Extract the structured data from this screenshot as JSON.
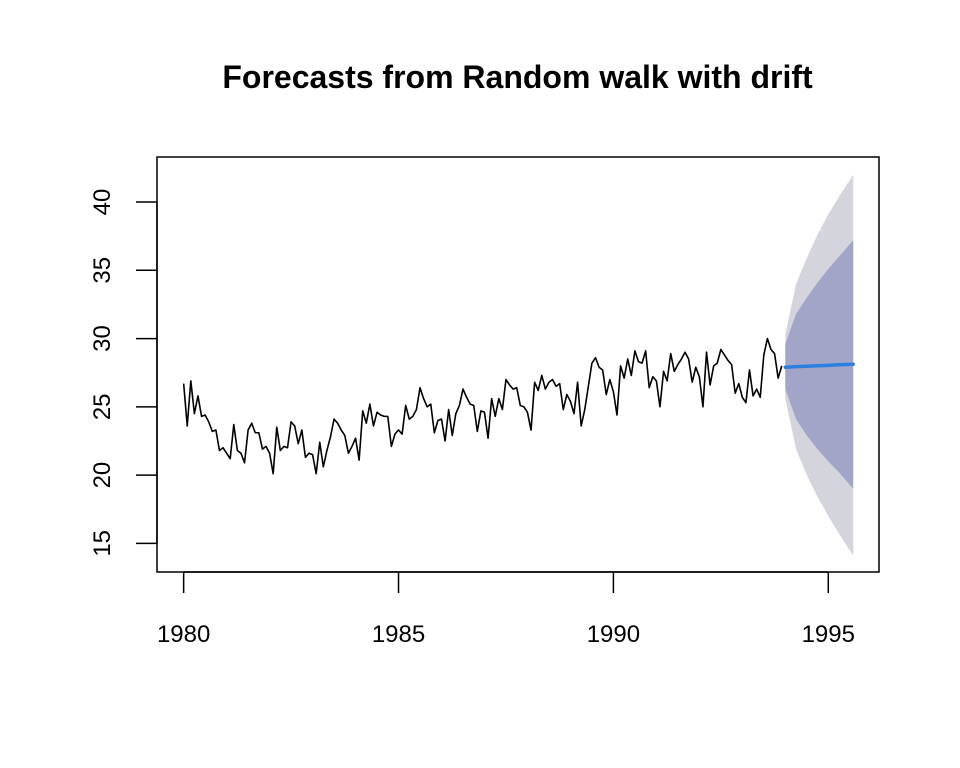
{
  "chart_data": {
    "type": "line",
    "title": "Forecasts from Random walk with drift",
    "xlabel": "",
    "ylabel": "",
    "xlim": [
      1979.38,
      1996.18
    ],
    "ylim": [
      12.9,
      43.3
    ],
    "x_ticks": [
      1980,
      1985,
      1990,
      1995
    ],
    "x_tick_labels": [
      "1980",
      "1985",
      "1990",
      "1995"
    ],
    "y_ticks": [
      15,
      20,
      25,
      30,
      35,
      40
    ],
    "y_tick_labels": [
      "15",
      "20",
      "25",
      "30",
      "35",
      "40"
    ],
    "grid": false,
    "legend": "none",
    "history": {
      "start": 1980,
      "frequency": 12,
      "color": "#000000",
      "values": [
        26.7,
        23.6,
        26.9,
        24.5,
        25.8,
        24.3,
        24.4,
        23.9,
        23.2,
        23.3,
        21.8,
        22.0,
        21.6,
        21.2,
        23.7,
        21.8,
        21.6,
        20.9,
        23.3,
        23.8,
        23.1,
        23.1,
        21.9,
        22.1,
        21.6,
        20.1,
        23.5,
        21.8,
        22.1,
        22.0,
        23.9,
        23.6,
        22.3,
        23.3,
        21.3,
        21.6,
        21.5,
        20.1,
        22.4,
        20.6,
        21.8,
        22.8,
        24.1,
        23.8,
        23.3,
        22.9,
        21.6,
        22.1,
        22.7,
        21.1,
        24.7,
        23.8,
        25.2,
        23.6,
        24.6,
        24.4,
        24.3,
        24.3,
        22.1,
        23.0,
        23.3,
        23.0,
        25.1,
        24.1,
        24.3,
        24.8,
        26.4,
        25.6,
        25.0,
        25.2,
        23.1,
        24.0,
        24.1,
        22.5,
        24.8,
        22.9,
        24.5,
        25.1,
        26.3,
        25.7,
        25.2,
        25.1,
        23.2,
        24.7,
        24.6,
        22.7,
        25.6,
        24.3,
        25.6,
        24.8,
        27.0,
        26.6,
        26.3,
        26.4,
        25.1,
        25.0,
        24.6,
        23.3,
        26.8,
        26.2,
        27.3,
        26.3,
        26.8,
        27.0,
        26.5,
        26.7,
        24.8,
        25.9,
        25.4,
        24.5,
        26.8,
        23.6,
        24.8,
        26.5,
        28.2,
        28.6,
        27.9,
        27.7,
        25.9,
        27.0,
        26.1,
        24.4,
        28.0,
        27.1,
        28.5,
        27.3,
        29.1,
        28.3,
        28.2,
        29.1,
        26.4,
        27.2,
        26.9,
        25.0,
        27.6,
        26.9,
        28.9,
        27.6,
        28.1,
        28.5,
        29.0,
        28.5,
        26.8,
        27.9,
        27.2,
        25.0,
        29.0,
        26.6,
        28.0,
        28.2,
        29.2,
        28.8,
        28.4,
        28.1,
        26.0,
        26.7,
        25.7,
        25.3,
        27.7,
        25.8,
        26.3,
        25.7,
        28.8,
        30.0,
        29.2,
        28.9,
        27.1,
        28.0
      ]
    },
    "forecast": {
      "start": 1994.0,
      "end": 1995.58,
      "mean_color": "#2A7FE0",
      "band_80_color": "#A3A5C8",
      "band_95_color": "#D4D4DC",
      "x": [
        1994.0,
        1994.25,
        1994.5,
        1994.75,
        1995.0,
        1995.25,
        1995.58
      ],
      "mean": [
        27.9,
        27.94,
        27.97,
        28.01,
        28.04,
        28.08,
        28.12
      ],
      "lo80": [
        26.3,
        24.1,
        22.9,
        21.9,
        21.0,
        20.2,
        19.0
      ],
      "hi80": [
        29.6,
        31.8,
        33.0,
        34.1,
        35.1,
        36.0,
        37.2
      ],
      "lo95": [
        25.6,
        21.9,
        20.0,
        18.4,
        17.0,
        15.7,
        14.1
      ],
      "hi95": [
        30.3,
        34.0,
        35.9,
        37.6,
        39.1,
        40.4,
        42.0
      ]
    }
  }
}
